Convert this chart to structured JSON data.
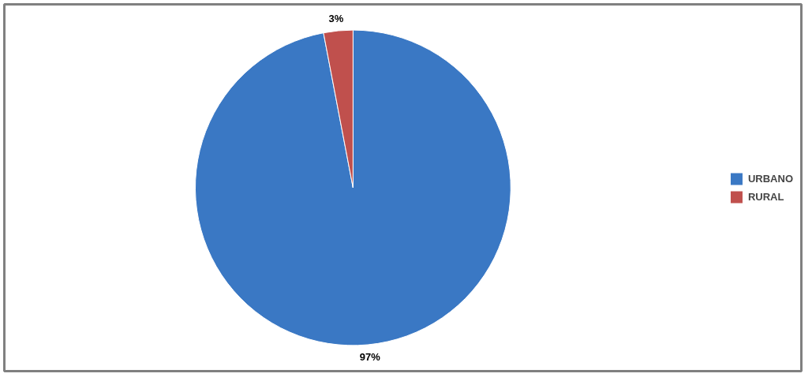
{
  "chart_data": {
    "type": "pie",
    "categories": [
      "URBANO",
      "RURAL"
    ],
    "values": [
      97,
      3
    ],
    "colors": [
      "#3a78c4",
      "#c0504d"
    ],
    "value_labels": [
      "97%",
      "3%"
    ],
    "legend": "right"
  }
}
